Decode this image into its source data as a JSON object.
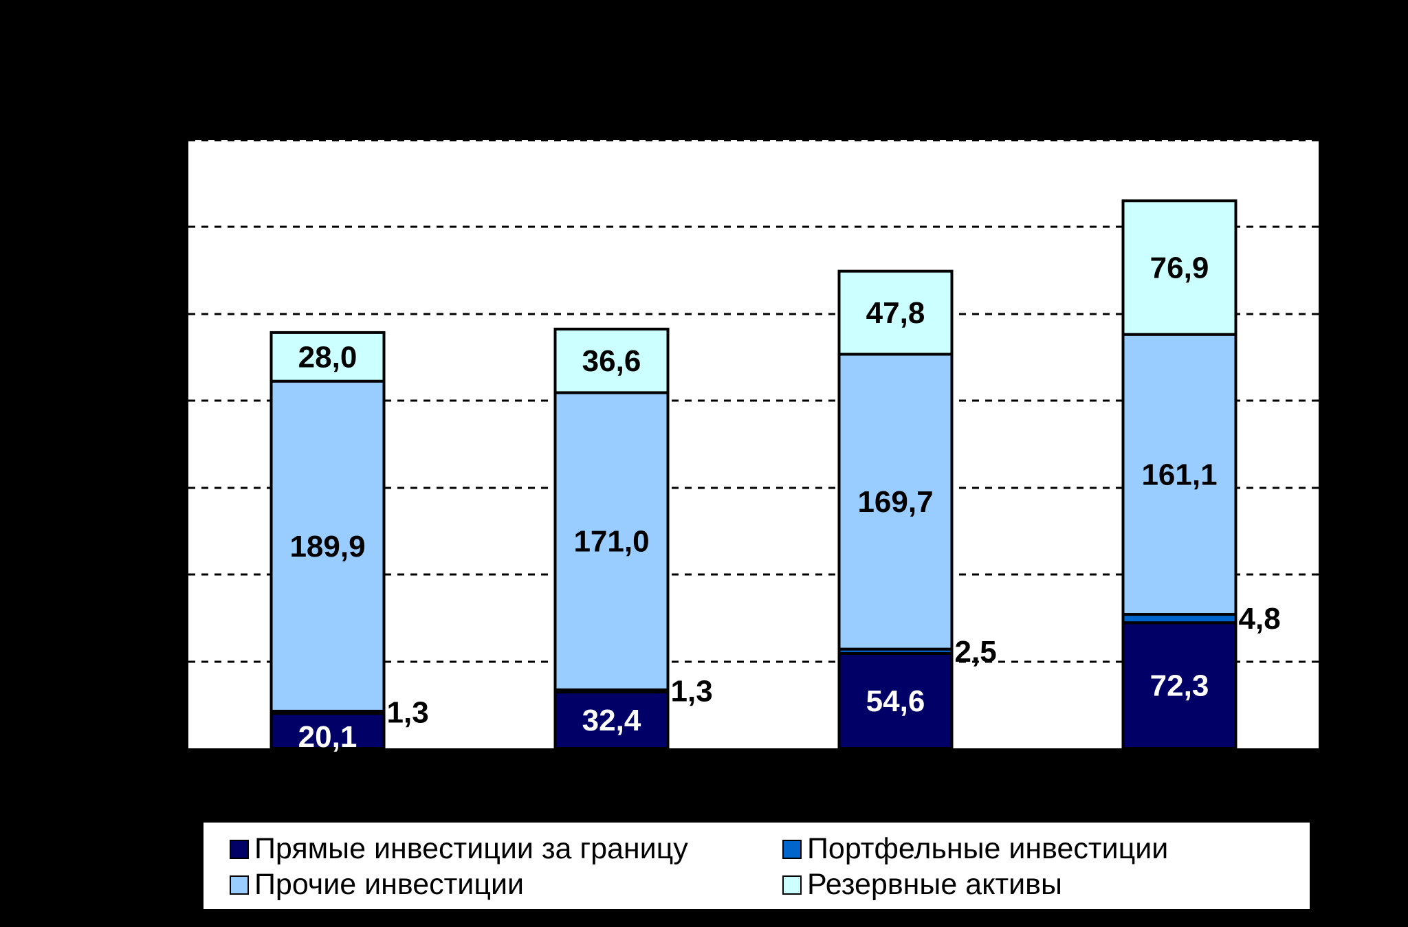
{
  "chart_data": {
    "type": "bar",
    "stacked": true,
    "categories": [
      "",
      "",
      "",
      ""
    ],
    "series": [
      {
        "name": "Прямые инвестиции за границу",
        "color": "#000066",
        "label_color": "#ffffff",
        "values": [
          20.1,
          32.4,
          54.6,
          72.3
        ],
        "labels": [
          "20,1",
          "32,4",
          "54,6",
          "72,3"
        ]
      },
      {
        "name": "Портфельные инвестиции",
        "color": "#0066cc",
        "label_color": "#000000",
        "values": [
          1.3,
          1.3,
          2.5,
          4.8
        ],
        "labels": [
          "1,3",
          "1,3",
          "2,5",
          "4,8"
        ]
      },
      {
        "name": "Прочие инвестиции",
        "color": "#99ccff",
        "label_color": "#000000",
        "values": [
          189.9,
          171.0,
          169.7,
          161.1
        ],
        "labels": [
          "189,9",
          "171,0",
          "169,7",
          "161,1"
        ]
      },
      {
        "name": "Резервные активы",
        "color": "#ccffff",
        "label_color": "#000000",
        "values": [
          28.0,
          36.6,
          47.8,
          76.9
        ],
        "labels": [
          "28,0",
          "36,6",
          "47,8",
          "76,9"
        ]
      }
    ],
    "ylim": [
      0,
      350
    ],
    "gridlines": [
      50,
      100,
      150,
      200,
      250,
      300,
      350
    ],
    "grid": true,
    "grid_style": "dashed",
    "legend_position": "bottom",
    "title": "",
    "xlabel": "",
    "ylabel": ""
  },
  "legend": {
    "items": [
      {
        "label": "Прямые инвестиции за границу",
        "color": "#000066"
      },
      {
        "label": "Портфельные инвестиции",
        "color": "#0066cc"
      },
      {
        "label": "Прочие инвестиции",
        "color": "#99ccff"
      },
      {
        "label": "Резервные активы",
        "color": "#ccffff"
      }
    ]
  }
}
